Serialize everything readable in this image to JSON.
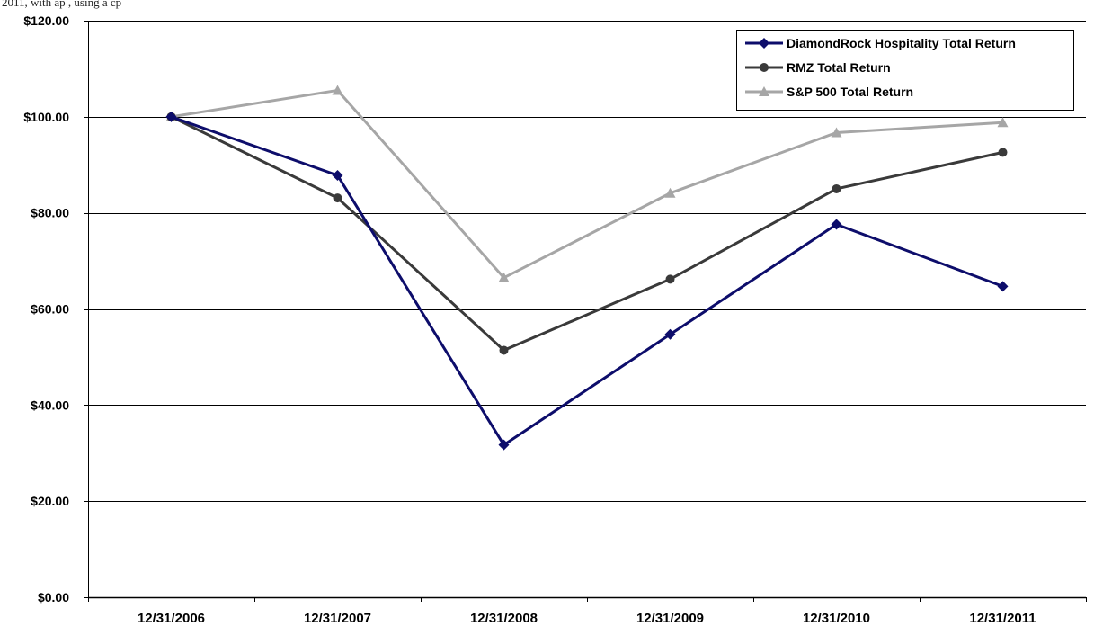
{
  "caption": "2011, with ap                                 , using a cp",
  "chart_data": {
    "type": "line",
    "title": "",
    "xlabel": "",
    "ylabel": "",
    "categories": [
      "12/31/2006",
      "12/31/2007",
      "12/31/2008",
      "12/31/2009",
      "12/31/2010",
      "12/31/2011"
    ],
    "ylim": [
      0,
      120
    ],
    "yticks": [
      0,
      20,
      40,
      60,
      80,
      100,
      120
    ],
    "ytick_labels": [
      "$0.00",
      "$20.00",
      "$40.00",
      "$60.00",
      "$80.00",
      "$100.00",
      "$120.00"
    ],
    "grid": "horizontal",
    "legend_position": "top-right",
    "series": [
      {
        "name": "DiamondRock Hospitality Total Return",
        "color": "#0d0d6b",
        "marker": "diamond",
        "values": [
          100.0,
          87.8,
          31.7,
          54.7,
          77.6,
          64.7
        ]
      },
      {
        "name": "RMZ Total Return",
        "color": "#3a3a3a",
        "marker": "circle",
        "values": [
          100.0,
          83.1,
          51.4,
          66.2,
          85.0,
          92.6
        ]
      },
      {
        "name": "S&P 500 Total Return",
        "color": "#a6a6a6",
        "marker": "triangle",
        "values": [
          100.0,
          105.5,
          66.5,
          84.1,
          96.7,
          98.8
        ]
      }
    ]
  }
}
